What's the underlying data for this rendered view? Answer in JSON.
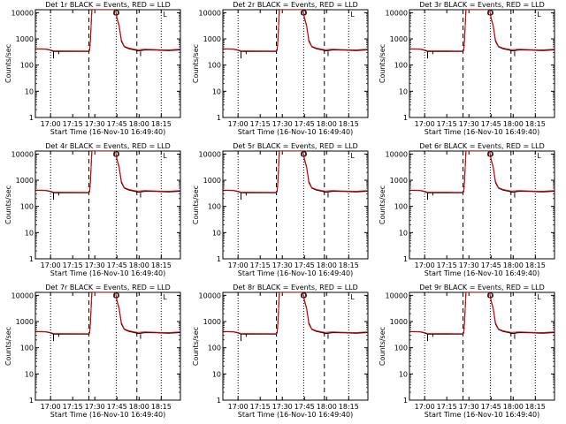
{
  "chart_data": {
    "type": "line",
    "panel_titles": [
      "Det 1r BLACK = Events, RED = LLD",
      "Det 2r BLACK = Events, RED = LLD",
      "Det 3r BLACK = Events, RED = LLD",
      "Det 4r BLACK = Events, RED = LLD",
      "Det 5r BLACK = Events, RED = LLD",
      "Det 6r BLACK = Events, RED = LLD",
      "Det 7r BLACK = Events, RED = LLD",
      "Det 8r BLACK = Events, RED = LLD",
      "Det 9r BLACK = Events, RED = LLD"
    ],
    "xlabel": "Start Time (16-Nov-10 16:49:40)",
    "ylabel": "Counts/sec",
    "x_tick_labels": [
      "17:00",
      "17:15",
      "17:30",
      "17:45",
      "18:00",
      "18:15"
    ],
    "x_tick_minutes": [
      0,
      15,
      30,
      45,
      60,
      75
    ],
    "xlim_minutes": [
      -10.3,
      88
    ],
    "y_tick_labels": [
      "1",
      "10",
      "100",
      "1000",
      "10000"
    ],
    "y_tick_values": [
      1,
      10,
      100,
      1000,
      10000
    ],
    "ylim": [
      1,
      13000
    ],
    "yscale": "log",
    "dotted_vlines_minutes": [
      0,
      44.5,
      75
    ],
    "dashed_vlines_minutes": [
      26,
      58.5
    ],
    "marker_labels": [
      "D",
      "L"
    ],
    "series_colors": {
      "events": "#000000",
      "lld": "#e00000"
    },
    "series": [
      {
        "name": "Events",
        "points": [
          [
            -10,
            410
          ],
          [
            -3,
            400
          ],
          [
            0,
            365
          ],
          [
            2,
            330
          ],
          [
            5,
            330
          ],
          [
            20,
            330
          ],
          [
            26,
            330
          ],
          [
            26.5,
            380
          ],
          [
            27,
            800
          ],
          [
            28,
            13000
          ],
          [
            37,
            13000
          ],
          [
            44,
            13000
          ],
          [
            45,
            6000
          ],
          [
            46.5,
            3000
          ],
          [
            48,
            800
          ],
          [
            50,
            500
          ],
          [
            53,
            420
          ],
          [
            56,
            390
          ],
          [
            58.5,
            360
          ],
          [
            60,
            350
          ],
          [
            64,
            380
          ],
          [
            72,
            370
          ],
          [
            80,
            360
          ],
          [
            88,
            380
          ]
        ]
      },
      {
        "name": "LLD",
        "points": [
          [
            -10,
            420
          ],
          [
            -3,
            410
          ],
          [
            0,
            380
          ],
          [
            2,
            350
          ],
          [
            5,
            350
          ],
          [
            20,
            345
          ],
          [
            26,
            345
          ],
          [
            26.5,
            420
          ],
          [
            27,
            900
          ],
          [
            28,
            13000
          ],
          [
            37,
            13000
          ],
          [
            44,
            13000
          ],
          [
            45,
            6500
          ],
          [
            46.5,
            3200
          ],
          [
            48,
            900
          ],
          [
            50,
            520
          ],
          [
            53,
            450
          ],
          [
            56,
            410
          ],
          [
            58.5,
            390
          ],
          [
            60,
            390
          ],
          [
            64,
            400
          ],
          [
            72,
            390
          ],
          [
            80,
            380
          ],
          [
            88,
            400
          ]
        ]
      }
    ]
  }
}
